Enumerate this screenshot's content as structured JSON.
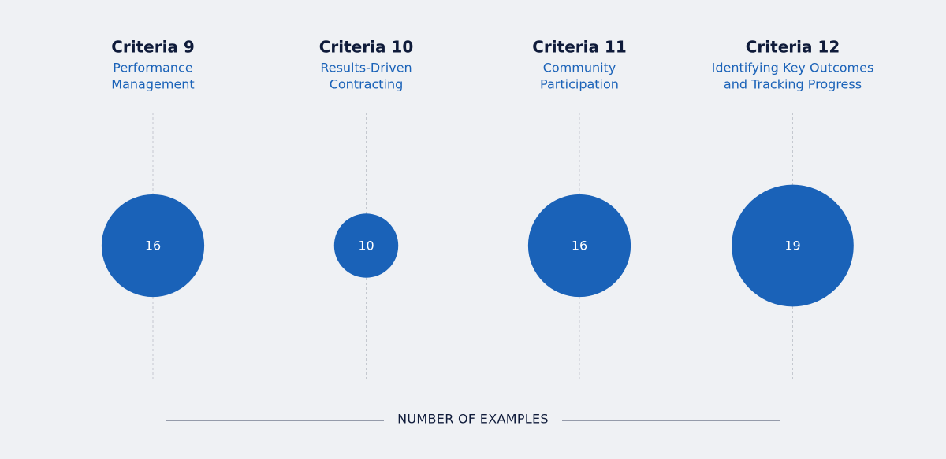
{
  "chart_data": {
    "type": "bubble",
    "categories": [
      "Criteria 9",
      "Criteria 10",
      "Criteria 11",
      "Criteria 12"
    ],
    "subtitles": [
      [
        "Performance",
        "Management"
      ],
      [
        "Results-Driven",
        "Contracting"
      ],
      [
        "Community",
        "Participation"
      ],
      [
        "Identifying Key Outcomes",
        "and Tracking Progress"
      ]
    ],
    "values": [
      16,
      10,
      16,
      19
    ],
    "color": "#1a62b8",
    "x_label": "NUMBER OF EXAMPLES"
  }
}
